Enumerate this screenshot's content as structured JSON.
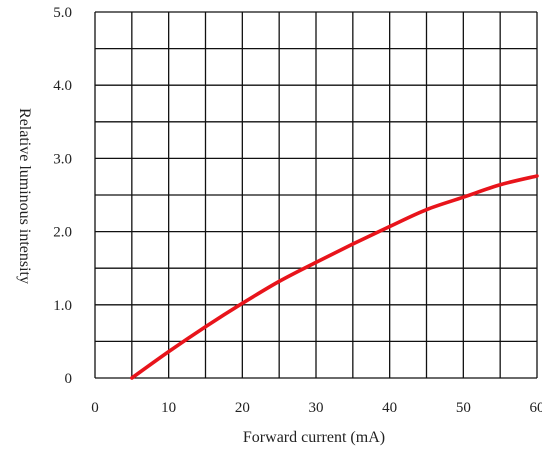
{
  "chart_data": {
    "type": "line",
    "title": "",
    "xlabel": "Forward current (mA)",
    "ylabel": "Relative luminous intensity",
    "xlim": [
      0,
      60
    ],
    "ylim": [
      0,
      5.0
    ],
    "x_ticks": [
      0,
      10,
      20,
      30,
      40,
      50,
      60
    ],
    "y_ticks": [
      0,
      1.0,
      2.0,
      3.0,
      4.0,
      5.0
    ],
    "x_tick_labels": [
      "0",
      "10",
      "20",
      "30",
      "40",
      "50",
      "60"
    ],
    "y_tick_labels": [
      "0",
      "1.0",
      "2.0",
      "3.0",
      "4.0",
      "5.0"
    ],
    "x_grid_step": 5,
    "y_grid_step": 0.5,
    "grid": true,
    "legend": "none",
    "series": [
      {
        "color": "#e8141b",
        "points": [
          [
            5,
            0
          ],
          [
            10,
            0.36
          ],
          [
            15,
            0.7
          ],
          [
            20,
            1.02
          ],
          [
            25,
            1.32
          ],
          [
            30,
            1.58
          ],
          [
            35,
            1.83
          ],
          [
            40,
            2.07
          ],
          [
            45,
            2.3
          ],
          [
            50,
            2.47
          ],
          [
            55,
            2.64
          ],
          [
            60,
            2.76
          ]
        ]
      }
    ]
  }
}
